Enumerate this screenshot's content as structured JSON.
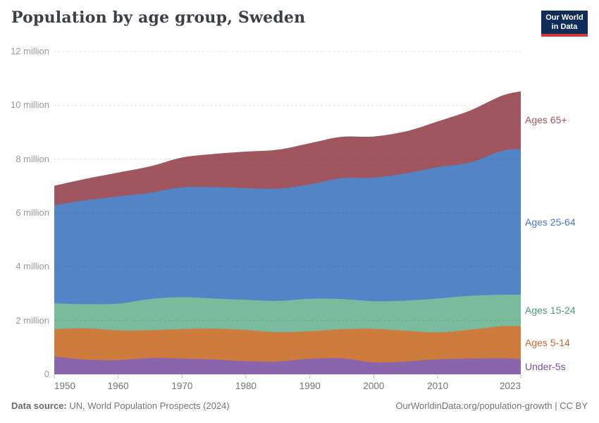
{
  "header": {
    "title": "Population by age group, Sweden",
    "logo": {
      "line1": "Our World",
      "line2": "in Data"
    }
  },
  "chart_data": {
    "type": "area",
    "stacked": true,
    "title": "Population by age group, Sweden",
    "xlabel": "",
    "ylabel": "",
    "unit": "million people",
    "xlim": [
      1950,
      2023
    ],
    "ylim": [
      0,
      12
    ],
    "grid": "dashed-horizontal",
    "legend_position": "right-of-plot",
    "x": [
      1950,
      1955,
      1960,
      1965,
      1970,
      1975,
      1980,
      1985,
      1990,
      1995,
      2000,
      2005,
      2010,
      2015,
      2020,
      2023
    ],
    "series": [
      {
        "name": "Under-5s",
        "color": "#8a65ae",
        "text_color": "#7d52a7",
        "values": [
          0.66,
          0.55,
          0.53,
          0.61,
          0.59,
          0.55,
          0.49,
          0.48,
          0.58,
          0.6,
          0.45,
          0.48,
          0.56,
          0.59,
          0.6,
          0.57
        ]
      },
      {
        "name": "Ages 5-14",
        "color": "#ce7c3d",
        "text_color": "#c96a2d",
        "values": [
          1.02,
          1.16,
          1.1,
          1.03,
          1.09,
          1.15,
          1.16,
          1.09,
          1.02,
          1.08,
          1.24,
          1.14,
          1.0,
          1.07,
          1.19,
          1.22
        ]
      },
      {
        "name": "Ages 15-24",
        "color": "#79bb9c",
        "text_color": "#4b9c7d",
        "values": [
          0.96,
          0.9,
          1.0,
          1.16,
          1.19,
          1.12,
          1.12,
          1.16,
          1.21,
          1.12,
          1.03,
          1.12,
          1.26,
          1.26,
          1.17,
          1.17
        ]
      },
      {
        "name": "Ages 25-64",
        "color": "#5284c6",
        "text_color": "#4878c8",
        "values": [
          3.65,
          3.86,
          3.98,
          3.95,
          4.08,
          4.14,
          4.15,
          4.17,
          4.25,
          4.49,
          4.59,
          4.73,
          4.88,
          4.95,
          5.34,
          5.42
        ]
      },
      {
        "name": "Ages 65+",
        "color": "#a0565f",
        "text_color": "#a4555c",
        "values": [
          0.72,
          0.8,
          0.89,
          0.98,
          1.11,
          1.23,
          1.36,
          1.45,
          1.53,
          1.54,
          1.53,
          1.56,
          1.7,
          1.93,
          2.05,
          2.14
        ]
      }
    ],
    "y_ticks": [
      {
        "value": 0,
        "label": "0"
      },
      {
        "value": 2,
        "label": "2 million"
      },
      {
        "value": 4,
        "label": "4 million"
      },
      {
        "value": 6,
        "label": "6 million"
      },
      {
        "value": 8,
        "label": "8 million"
      },
      {
        "value": 10,
        "label": "10 million"
      },
      {
        "value": 12,
        "label": "12 million"
      }
    ],
    "x_ticks": [
      {
        "value": 1950,
        "label": "1950"
      },
      {
        "value": 1960,
        "label": "1960"
      },
      {
        "value": 1970,
        "label": "1970"
      },
      {
        "value": 1980,
        "label": "1980"
      },
      {
        "value": 1990,
        "label": "1990"
      },
      {
        "value": 2000,
        "label": "2000"
      },
      {
        "value": 2010,
        "label": "2010"
      },
      {
        "value": 2023,
        "label": "2023"
      }
    ]
  },
  "footer": {
    "source_label": "Data source:",
    "source_text": " UN, World Population Prospects (2024)",
    "right_text": "OurWorldinData.org/population-growth | CC BY"
  },
  "colors": {
    "logo_navy": "#102d59",
    "logo_red": "#ce383c",
    "title_text": "#3c4046",
    "axis_text": "#9a9aa0",
    "xaxis_text": "#6f7377",
    "footer_text": "#757575"
  }
}
